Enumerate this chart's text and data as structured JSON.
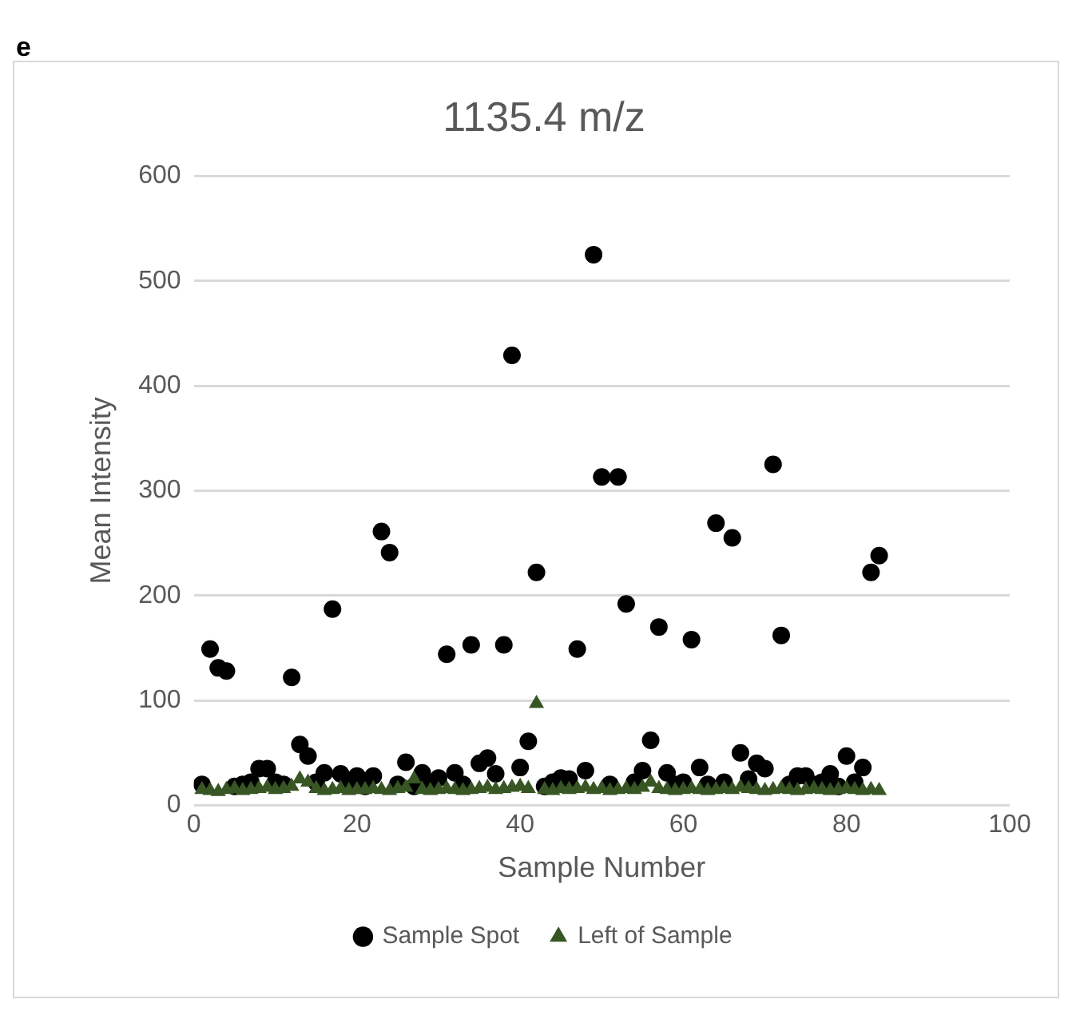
{
  "chart_data": {
    "type": "scatter",
    "title": "1135.4 m/z",
    "xlabel": "Sample Number",
    "ylabel": "Mean Intensity",
    "annotations": [
      "e"
    ],
    "x": [
      1,
      2,
      3,
      4,
      5,
      6,
      7,
      8,
      9,
      10,
      11,
      12,
      13,
      14,
      15,
      16,
      17,
      18,
      19,
      20,
      21,
      22,
      23,
      24,
      25,
      26,
      27,
      28,
      29,
      30,
      31,
      32,
      33,
      34,
      35,
      36,
      37,
      38,
      39,
      40,
      41,
      42,
      43,
      44,
      45,
      46,
      47,
      48,
      49,
      50,
      51,
      52,
      53,
      54,
      55,
      56,
      57,
      58,
      59,
      60,
      61,
      62,
      63,
      64,
      65,
      66,
      67,
      68,
      69,
      70,
      71,
      72,
      73,
      74,
      75,
      76,
      77,
      78,
      79,
      80,
      81,
      82,
      83,
      84
    ],
    "series": [
      {
        "name": "Sample Spot",
        "color": "#000000",
        "marker": "circle",
        "values": [
          20,
          149,
          131,
          128,
          18,
          20,
          22,
          35,
          35,
          22,
          20,
          122,
          58,
          47,
          22,
          31,
          187,
          30,
          20,
          28,
          18,
          28,
          261,
          241,
          20,
          41,
          18,
          31,
          20,
          26,
          144,
          31,
          20,
          153,
          40,
          45,
          30,
          153,
          429,
          36,
          61,
          222,
          18,
          22,
          26,
          25,
          149,
          33,
          525,
          313,
          20,
          313,
          192,
          22,
          33,
          62,
          170,
          31,
          20,
          22,
          158,
          36,
          20,
          269,
          22,
          255,
          50,
          25,
          40,
          35,
          325,
          162,
          20,
          28,
          28,
          20,
          22,
          30,
          18,
          47,
          22,
          36,
          222,
          238
        ]
      },
      {
        "name": "Left of Sample",
        "color": "#375623",
        "marker": "triangle",
        "values": [
          15,
          14,
          13,
          15,
          16,
          14,
          15,
          16,
          17,
          15,
          16,
          18,
          25,
          22,
          16,
          14,
          15,
          16,
          14,
          15,
          15,
          16,
          15,
          14,
          16,
          17,
          25,
          15,
          14,
          15,
          16,
          15,
          14,
          15,
          16,
          17,
          15,
          16,
          17,
          18,
          16,
          97,
          15,
          14,
          16,
          15,
          16,
          17,
          15,
          16,
          14,
          15,
          16,
          15,
          17,
          22,
          16,
          15,
          14,
          15,
          16,
          15,
          14,
          15,
          16,
          15,
          17,
          16,
          15,
          14,
          15,
          16,
          15,
          14,
          15,
          16,
          15,
          14,
          15,
          16,
          15,
          14,
          15,
          14
        ]
      }
    ],
    "xlim": [
      0,
      100
    ],
    "xticks": [
      0,
      20,
      40,
      60,
      80,
      100
    ],
    "ylim": [
      0,
      600
    ],
    "yticks": [
      0,
      100,
      200,
      300,
      400,
      500,
      600
    ],
    "grid": "y",
    "legend": "bottom"
  }
}
